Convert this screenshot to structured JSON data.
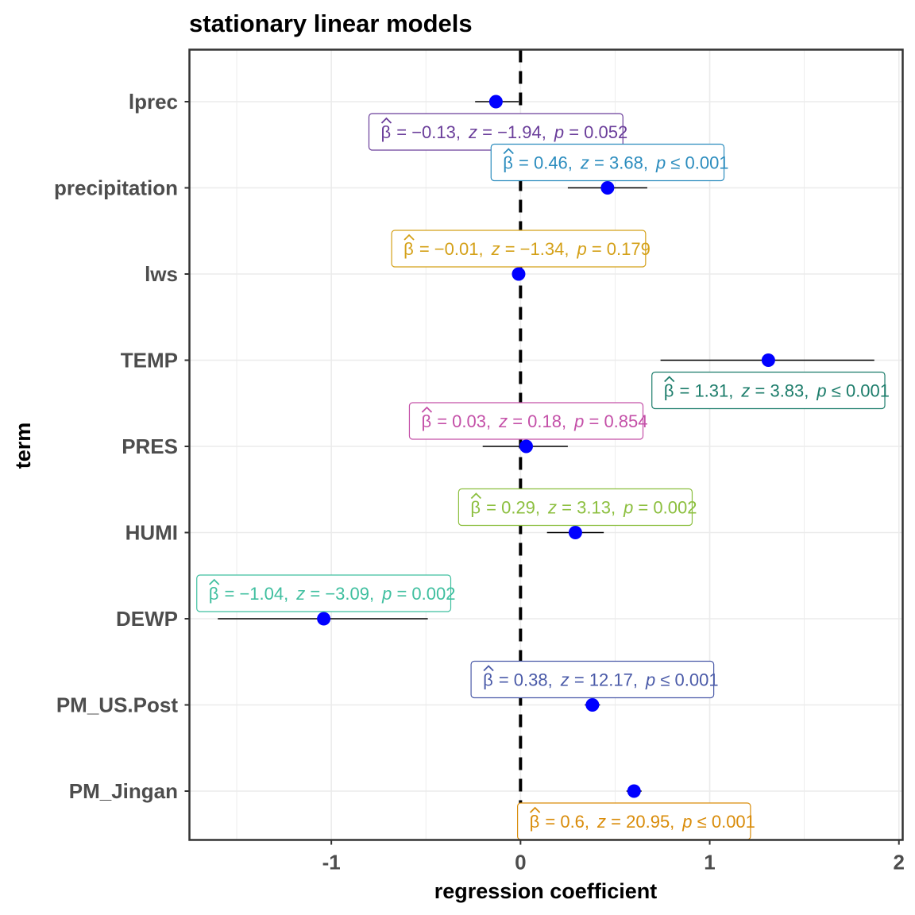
{
  "chart_data": {
    "type": "scatter",
    "subtype": "coefficient-plot",
    "title": "stationary linear models",
    "xlabel": "regression coefficient",
    "ylabel": "term",
    "xlim": [
      -1.75,
      2.02
    ],
    "xticks": [
      -1,
      0,
      1,
      2
    ],
    "xtick_labels": [
      "-1",
      "0",
      "1",
      "2"
    ],
    "reference_line_x": 0,
    "grid": true,
    "point_color": "#0000ff",
    "terms": [
      {
        "term": "lprec",
        "estimate": -0.13,
        "conf_low": -0.24,
        "conf_high": -0.01,
        "label": {
          "beta": "−0.13",
          "z": "−1.94",
          "p_op": "=",
          "p": "0.052"
        },
        "label_color": "#6a3d9a",
        "label_side": "below"
      },
      {
        "term": "precipitation",
        "estimate": 0.46,
        "conf_low": 0.25,
        "conf_high": 0.67,
        "label": {
          "beta": "0.46",
          "z": "3.68",
          "p_op": "≤",
          "p": "0.001"
        },
        "label_color": "#2b8cbe",
        "label_side": "above"
      },
      {
        "term": "lws",
        "estimate": -0.01,
        "conf_low": -0.02,
        "conf_high": 0.0,
        "label": {
          "beta": "−0.01",
          "z": "−1.34",
          "p_op": "=",
          "p": "0.179"
        },
        "label_color": "#d4a017",
        "label_side": "above"
      },
      {
        "term": "TEMP",
        "estimate": 1.31,
        "conf_low": 0.74,
        "conf_high": 1.87,
        "label": {
          "beta": "1.31",
          "z": "3.83",
          "p_op": "≤",
          "p": "0.001"
        },
        "label_color": "#1b7c6a",
        "label_side": "below"
      },
      {
        "term": "PRES",
        "estimate": 0.03,
        "conf_low": -0.2,
        "conf_high": 0.25,
        "label": {
          "beta": "0.03",
          "z": "0.18",
          "p_op": "=",
          "p": "0.854"
        },
        "label_color": "#c450a8",
        "label_side": "above"
      },
      {
        "term": "HUMI",
        "estimate": 0.29,
        "conf_low": 0.14,
        "conf_high": 0.44,
        "label": {
          "beta": "0.29",
          "z": "3.13",
          "p_op": "=",
          "p": "0.002"
        },
        "label_color": "#8cbf3f",
        "label_side": "above"
      },
      {
        "term": "DEWP",
        "estimate": -1.04,
        "conf_low": -1.6,
        "conf_high": -0.49,
        "label": {
          "beta": "−1.04",
          "z": "−3.09",
          "p_op": "=",
          "p": "0.002"
        },
        "label_color": "#3fbf9f",
        "label_side": "above"
      },
      {
        "term": "PM_US.Post",
        "estimate": 0.38,
        "conf_low": 0.34,
        "conf_high": 0.42,
        "label": {
          "beta": "0.38",
          "z": "12.17",
          "p_op": "≤",
          "p": "0.001"
        },
        "label_color": "#4a5aa8",
        "label_side": "above"
      },
      {
        "term": "PM_Jingan",
        "estimate": 0.6,
        "conf_low": 0.56,
        "conf_high": 0.64,
        "label": {
          "beta": "0.6",
          "z": "20.95",
          "p_op": "≤",
          "p": "0.001"
        },
        "label_color": "#d98c0a",
        "label_side": "below"
      }
    ]
  }
}
